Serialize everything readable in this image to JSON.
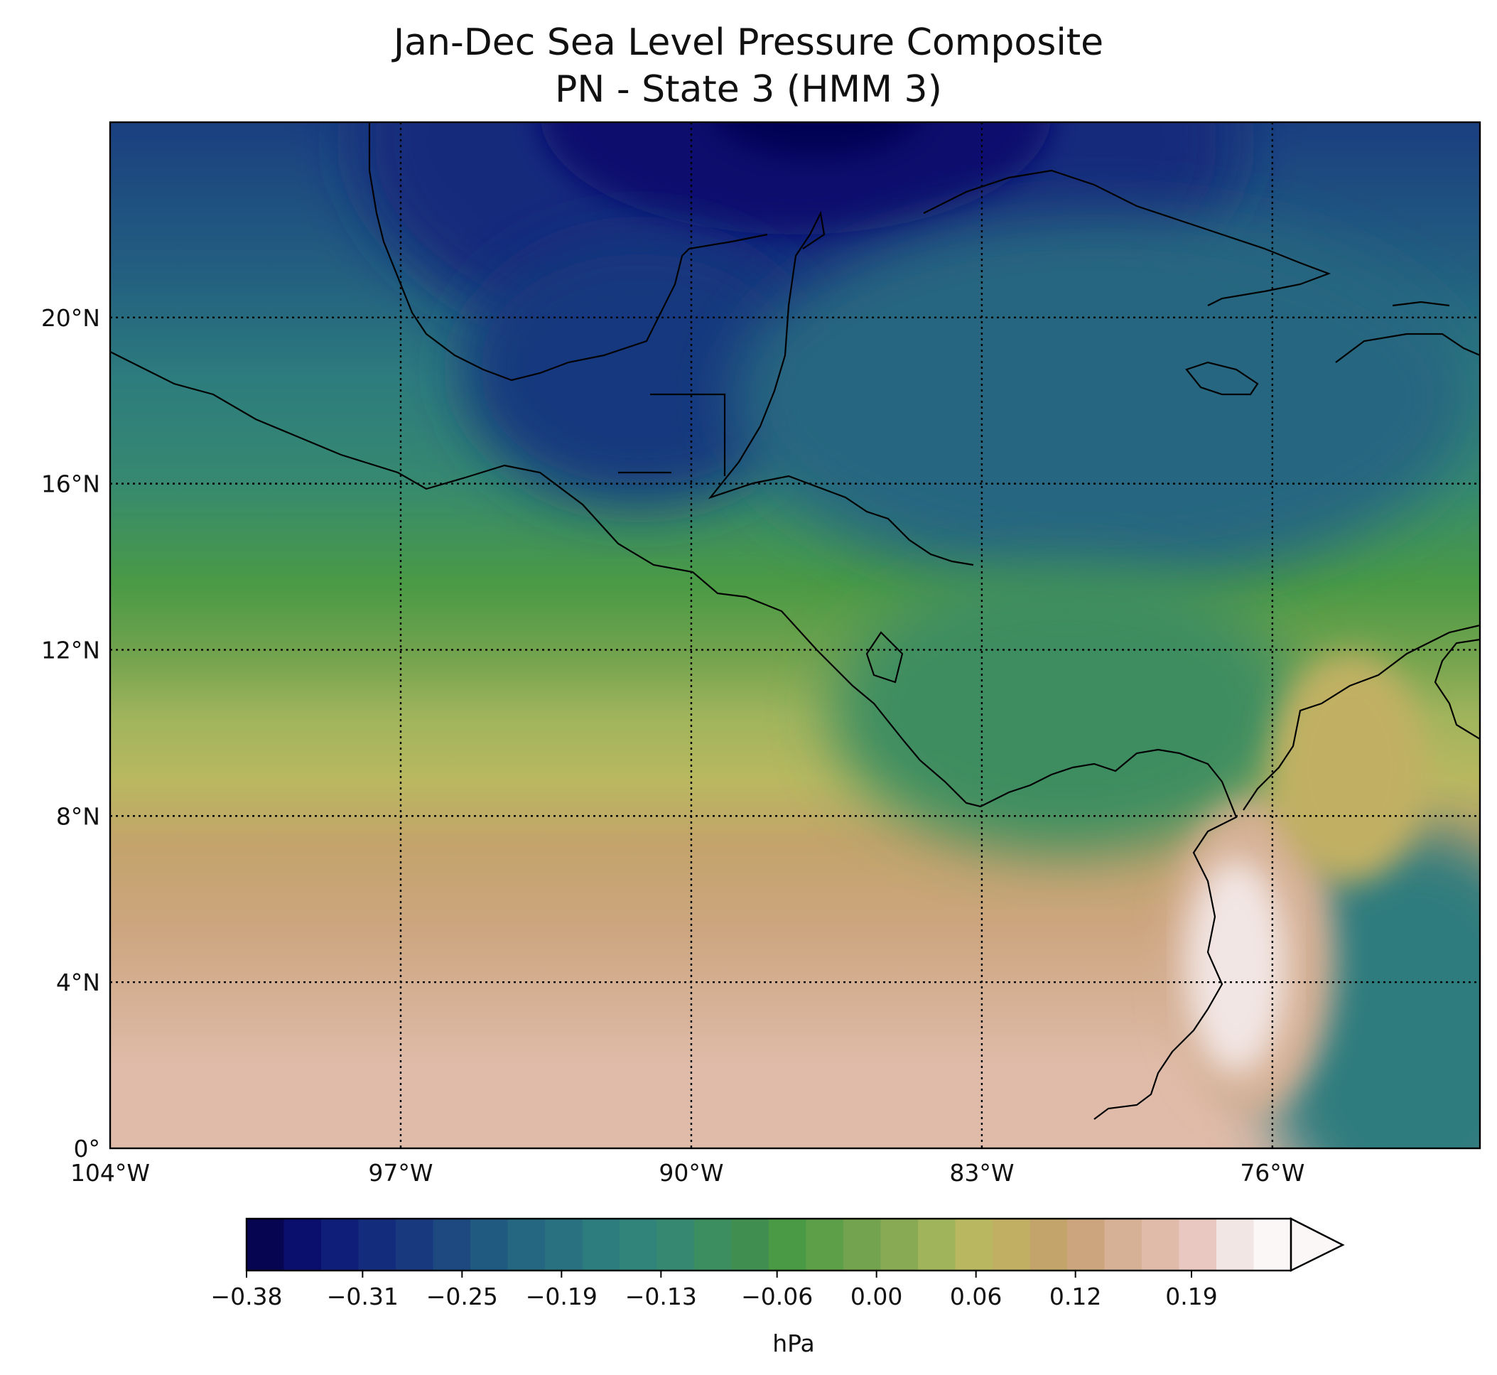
{
  "title_line1": "Jan-Dec Sea Level Pressure Composite",
  "title_line2": "PN - State 3 (HMM 3)",
  "map": {
    "lon_range": [
      -104,
      -71
    ],
    "lat_range": [
      0,
      24.7
    ],
    "lon_ticks": [
      {
        "value": -104,
        "label": "104°W"
      },
      {
        "value": -97,
        "label": "97°W"
      },
      {
        "value": -90,
        "label": "90°W"
      },
      {
        "value": -83,
        "label": "83°W"
      },
      {
        "value": -76,
        "label": "76°W"
      }
    ],
    "lat_ticks": [
      {
        "value": 20,
        "label": "20°N"
      },
      {
        "value": 16,
        "label": "16°N"
      },
      {
        "value": 12,
        "label": "12°N"
      },
      {
        "value": 8,
        "label": "8°N"
      },
      {
        "value": 4,
        "label": "4°N"
      },
      {
        "value": 0,
        "label": "0°"
      }
    ],
    "gridlines": "dotted",
    "field": "sea level pressure anomaly",
    "pattern_summary": "negative minimum over Gulf of Mexico / Yucatan, positive maximum over western Colombia (~4-6°N, 77°W)"
  },
  "colorbar": {
    "unit": "hPa",
    "min": -0.38,
    "max": 0.25,
    "extend": "max",
    "tick_values": [
      -0.38,
      -0.31,
      -0.25,
      -0.19,
      -0.13,
      -0.06,
      0.0,
      0.06,
      0.12,
      0.19
    ],
    "tick_labels": [
      "−0.38",
      "−0.31",
      "−0.25",
      "−0.19",
      "−0.13",
      "−0.06",
      "0.00",
      "0.06",
      "0.12",
      "0.19"
    ],
    "colors": [
      "#050552",
      "#0a0f6e",
      "#0f1e78",
      "#142c7c",
      "#19397e",
      "#1e4880",
      "#215a80",
      "#256680",
      "#297180",
      "#2d7c7e",
      "#31847a",
      "#368970",
      "#3c8d60",
      "#418f50",
      "#4a9a45",
      "#5d9e48",
      "#73a34e",
      "#88aa55",
      "#a0b45c",
      "#b9b860",
      "#c1b064",
      "#c3a46a",
      "#cca57e",
      "#d6b196",
      "#e0bba9",
      "#e8c8c0",
      "#f2e6e4",
      "#fbf7f7"
    ]
  }
}
